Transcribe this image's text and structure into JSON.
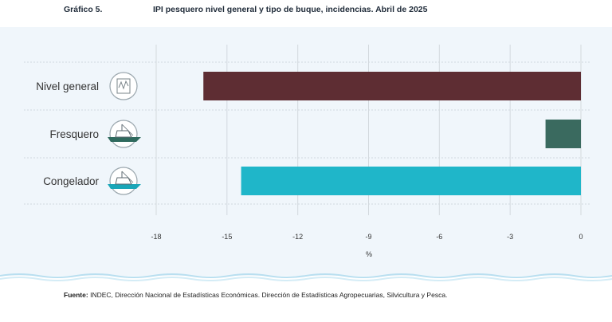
{
  "header": {
    "figure_number": "Gráfico 5.",
    "title": "IPI pesquero nivel general y tipo de buque, incidencias. Abril de 2025"
  },
  "footer": {
    "source_label": "Fuente:",
    "source_text": "INDEC, Dirección Nacional de Estadísticas Económicas. Dirección de Estadísticas Agropecuarias, Silvicultura y Pesca."
  },
  "chart_data": {
    "type": "bar",
    "orientation": "horizontal",
    "title": "IPI pesquero nivel general y tipo de buque, incidencias. Abril de 2025",
    "categories": [
      "Nivel general",
      "Fresquero",
      "Congelador"
    ],
    "values": [
      -16.0,
      -1.5,
      -14.4
    ],
    "colors": [
      "#5e2d33",
      "#3a6a5f",
      "#1fb6c9"
    ],
    "icons": [
      "chart-line-icon",
      "fresh-fish-boat-icon",
      "freezer-boat-icon"
    ],
    "xlabel": "%",
    "ylabel": "",
    "xlim": [
      -18,
      0
    ],
    "xticks": [
      "-18",
      "-15",
      "-12",
      "-9",
      "-6",
      "-3",
      "0"
    ],
    "grid": "vertical"
  }
}
